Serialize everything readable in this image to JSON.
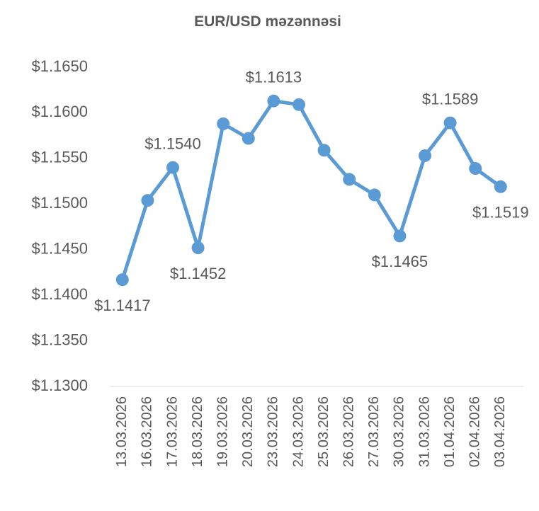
{
  "chart_data": {
    "type": "line",
    "title": "EUR/USD məzənnəsi",
    "categories": [
      "13.03.2026",
      "16.03.2026",
      "17.03.2026",
      "18.03.2026",
      "19.03.2026",
      "20.03.2026",
      "23.03.2026",
      "24.03.2026",
      "25.03.2026",
      "26.03.2026",
      "27.03.2026",
      "30.03.2026",
      "31.03.2026",
      "01.04.2026",
      "02.04.2026",
      "03.04.2026"
    ],
    "series": [
      {
        "name": "EUR/USD",
        "color": "#5b9bd5",
        "values": [
          1.1417,
          1.1504,
          1.154,
          1.1452,
          1.1588,
          1.1572,
          1.1613,
          1.1609,
          1.1559,
          1.1527,
          1.151,
          1.1465,
          1.1553,
          1.1589,
          1.1539,
          1.1519
        ],
        "value_labels": [
          "$1.1417",
          null,
          "$1.1540",
          "$1.1452",
          null,
          null,
          "$1.1613",
          null,
          null,
          null,
          null,
          "$1.1465",
          null,
          "$1.1589",
          null,
          "$1.1519"
        ]
      }
    ],
    "ylim": [
      1.13,
      1.165
    ],
    "yticks": [
      {
        "value": 1.13,
        "label": "$1.1300"
      },
      {
        "value": 1.135,
        "label": "$1.1350"
      },
      {
        "value": 1.14,
        "label": "$1.1400"
      },
      {
        "value": 1.145,
        "label": "$1.1450"
      },
      {
        "value": 1.15,
        "label": "$1.1500"
      },
      {
        "value": 1.155,
        "label": "$1.1550"
      },
      {
        "value": 1.16,
        "label": "$1.1600"
      },
      {
        "value": 1.165,
        "label": "$1.1650"
      }
    ],
    "grid": false
  }
}
